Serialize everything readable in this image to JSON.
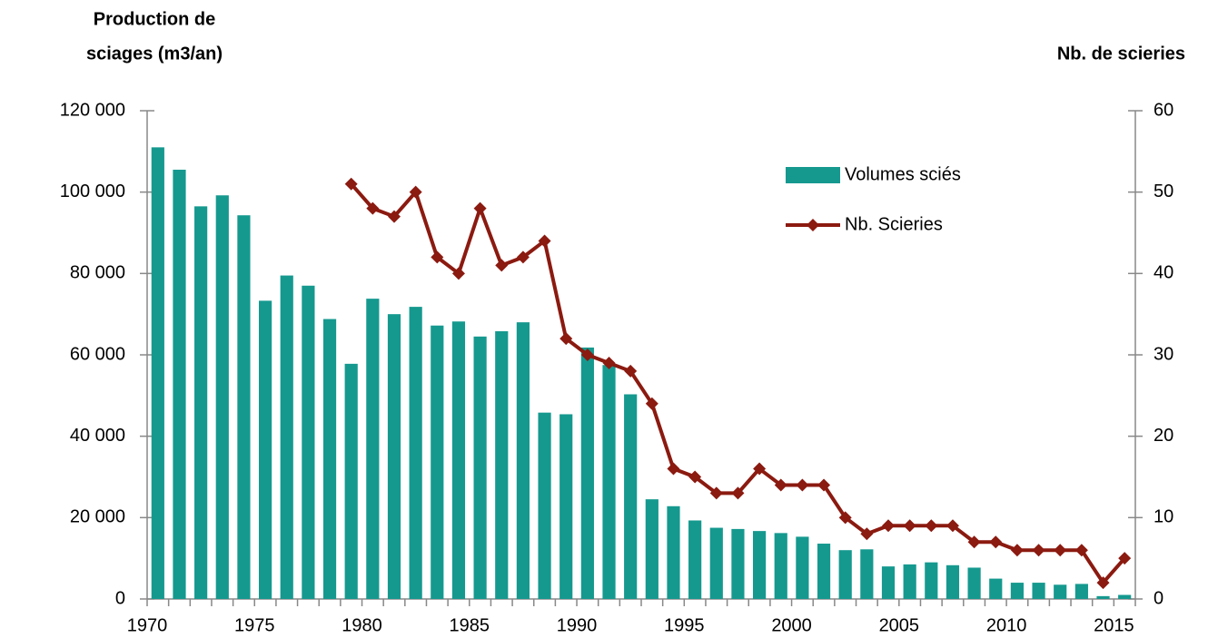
{
  "chart_data": {
    "type": "bar_line",
    "ylabel": [
      "Production de",
      "sciages (m3/an)"
    ],
    "y2label": "Nb. de scieries",
    "categories": [
      "1970",
      null,
      null,
      null,
      null,
      "1975",
      null,
      null,
      null,
      null,
      "1980",
      null,
      null,
      null,
      null,
      "1985",
      null,
      null,
      null,
      null,
      "1990",
      null,
      null,
      null,
      null,
      "1995",
      null,
      null,
      null,
      null,
      "2000",
      null,
      null,
      null,
      null,
      "2005",
      null,
      null,
      null,
      null,
      "2010",
      null,
      null,
      null,
      null,
      "2015"
    ],
    "series": [
      {
        "name": "Volumes sciés",
        "type": "bar",
        "color": "#15998f",
        "values": [
          111000,
          105500,
          96500,
          99200,
          94300,
          73300,
          79500,
          77000,
          68800,
          57800,
          73800,
          70000,
          71800,
          67200,
          68200,
          64500,
          65800,
          68000,
          45800,
          45400,
          61800,
          57500,
          50300,
          24500,
          22800,
          19300,
          17500,
          17200,
          16700,
          16200,
          15300,
          13600,
          12000,
          12200,
          8000,
          8500,
          9000,
          8300,
          7700,
          5000,
          4000,
          4000,
          3500,
          3700,
          700,
          1000
        ]
      },
      {
        "name": "Nb. Scieries",
        "type": "line",
        "axis": "y2",
        "color": "#8b1a10",
        "values": [
          null,
          null,
          null,
          null,
          null,
          null,
          null,
          null,
          null,
          51,
          48,
          47,
          50,
          42,
          40,
          48,
          41,
          42,
          44,
          32,
          30,
          29,
          28,
          24,
          16,
          15,
          13,
          13,
          16,
          14,
          14,
          14,
          10,
          8,
          9,
          9,
          9,
          9,
          7,
          7,
          6,
          6,
          6,
          6,
          2,
          5
        ]
      }
    ],
    "ylim": [
      0,
      120000
    ],
    "yticks": [
      0,
      {
        "value": 20000,
        "label": "20 000"
      },
      {
        "value": 40000,
        "label": "40 000"
      },
      {
        "value": 60000,
        "label": "60 000"
      },
      {
        "value": 80000,
        "label": "80 000"
      },
      {
        "value": 100000,
        "label": "100 000"
      },
      {
        "value": 120000,
        "label": "120 000"
      }
    ],
    "y2lim": [
      0,
      60
    ],
    "y2ticks": [
      0,
      10,
      20,
      30,
      40,
      50,
      60
    ],
    "grid": false,
    "legend": "upper right"
  }
}
